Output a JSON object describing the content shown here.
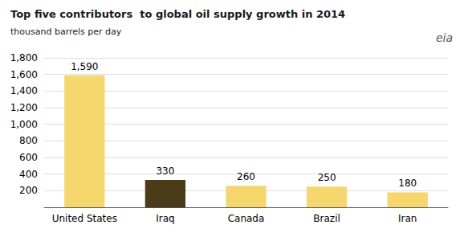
{
  "chart_data": {
    "type": "bar",
    "title": "Top five contributors  to global oil supply growth in 2014",
    "subtitle": "thousand barrels per day",
    "annotation": "eia",
    "categories": [
      "United States",
      "Iraq",
      "Canada",
      "Brazil",
      "Iran"
    ],
    "values": [
      1590,
      330,
      260,
      250,
      180
    ],
    "value_labels": [
      "1,590",
      "330",
      "260",
      "250",
      "180"
    ],
    "data_labels": true,
    "colors": [
      "#f5d76e",
      "#4a3c18",
      "#f5d76e",
      "#f5d76e",
      "#f5d76e"
    ],
    "ylim": [
      0,
      1800
    ],
    "yticks": [
      200,
      400,
      600,
      800,
      {
        "value": 1000,
        "label": "1,000"
      },
      {
        "value": 1200,
        "label": "1,200"
      },
      {
        "value": 1400,
        "label": "1,400"
      },
      {
        "value": 1600,
        "label": "1,600"
      },
      {
        "value": 1800,
        "label": "1,800"
      }
    ],
    "grid": true
  }
}
